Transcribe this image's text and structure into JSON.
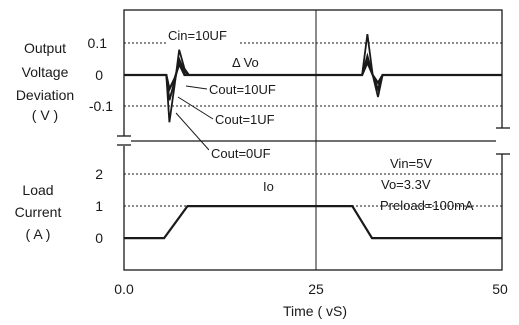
{
  "chart_data": [
    {
      "type": "line",
      "panel": "top",
      "ylabel": [
        "Output",
        "Voltage",
        "Deviation",
        "( V )"
      ],
      "yticks": [
        "0.1",
        "0",
        "-0.1"
      ],
      "ylim": [
        -0.2,
        0.2
      ],
      "annotations": [
        "Cin=10UF",
        "Δ Vo",
        "Cout=10UF",
        "Cout=1UF",
        "Cout=0UF"
      ],
      "series": [
        {
          "name": "Cout=10UF",
          "x": [
            0,
            5.6,
            6.0,
            6.7,
            7.3,
            8.0,
            8.6,
            31.5,
            32.2,
            32.9,
            33.6,
            34.2,
            50
          ],
          "y": [
            0,
            0,
            -0.045,
            -0.01,
            0.035,
            0,
            0,
            0,
            0.04,
            0,
            -0.025,
            0,
            0
          ]
        },
        {
          "name": "Cout=1UF",
          "x": [
            0,
            5.6,
            6.0,
            6.7,
            7.3,
            8.0,
            8.6,
            31.5,
            32.2,
            32.9,
            33.6,
            34.2,
            50
          ],
          "y": [
            0,
            0,
            -0.08,
            -0.02,
            0.05,
            0.01,
            0,
            0,
            0.06,
            0,
            -0.045,
            0,
            0
          ]
        },
        {
          "name": "Cout=0UF",
          "x": [
            0,
            5.6,
            6.0,
            6.7,
            7.3,
            8.0,
            8.6,
            31.5,
            32.2,
            32.9,
            33.6,
            34.2,
            50
          ],
          "y": [
            0,
            0,
            -0.15,
            -0.03,
            0.08,
            0.02,
            0,
            0,
            0.13,
            0,
            -0.07,
            0,
            0
          ]
        }
      ]
    },
    {
      "type": "line",
      "panel": "bottom",
      "ylabel": [
        "Load",
        "Current",
        "( A )"
      ],
      "yticks": [
        "2",
        "1",
        "0"
      ],
      "ylim": [
        -0.9,
        2.5
      ],
      "annotations": [
        "Io",
        "Vin=5V",
        "Vo=3.3V",
        "Preload=100mA"
      ],
      "series": [
        {
          "name": "Io",
          "x": [
            0,
            5.3,
            8.4,
            30.2,
            32.8,
            50
          ],
          "y": [
            0,
            0,
            1,
            1,
            0,
            0
          ]
        }
      ]
    }
  ],
  "x_axis": {
    "ticks": [
      "0.0",
      "25",
      "50"
    ],
    "tick_values": [
      0,
      25,
      50
    ],
    "xlim": [
      0,
      50
    ],
    "xlabel": "Time ( vS)"
  }
}
